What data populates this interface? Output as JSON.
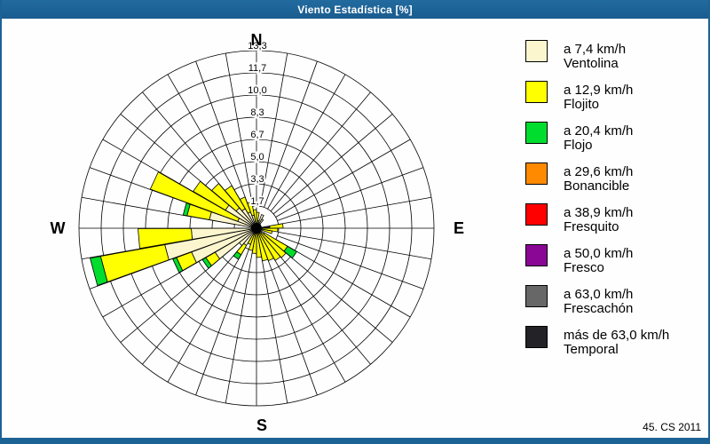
{
  "window": {
    "title": "Viento Estadística [%]",
    "footer": "45. CS 2011"
  },
  "colors": {
    "titlebar": "#1d6295",
    "frame": "#1d6295",
    "background": "#fdfefd",
    "grid": "#000000"
  },
  "chart_data": {
    "type": "windrose",
    "title": "Viento Estadística [%]",
    "units": "%",
    "legend_position": "right",
    "grid": true,
    "sector_width_deg": 10,
    "spoke_step_deg": 10,
    "radial_axis": {
      "max": 13.333,
      "ring_values": [
        1.667,
        3.333,
        5.0,
        6.667,
        8.333,
        10.0,
        11.667,
        13.333
      ],
      "ring_labels": [
        "1,7",
        "3,3",
        "5,0",
        "6,7",
        "8,3",
        "10,0",
        "11,7",
        "13,3"
      ]
    },
    "compass": {
      "n": "N",
      "e": "E",
      "s": "S",
      "w": "W"
    },
    "speed_classes": [
      {
        "key": "ventolina",
        "color": "#fcf6cf",
        "speed_label": "a 7,4 km/h",
        "name": "Ventolina"
      },
      {
        "key": "flojito",
        "color": "#ffff00",
        "speed_label": "a 12,9 km/h",
        "name": "Flojito"
      },
      {
        "key": "flojo",
        "color": "#00dd2e",
        "speed_label": "a 20,4 km/h",
        "name": "Flojo"
      },
      {
        "key": "bonancible",
        "color": "#ff8a00",
        "speed_label": "a 29,6 km/h",
        "name": "Bonancible"
      },
      {
        "key": "fresquito",
        "color": "#fe0000",
        "speed_label": "a 38,9 km/h",
        "name": "Fresquito"
      },
      {
        "key": "fresco",
        "color": "#8a0796",
        "speed_label": "a 50,0 km/h",
        "name": "Fresco"
      },
      {
        "key": "frescachon",
        "color": "#676767",
        "speed_label": "a 63,0 km/h",
        "name": "Frescachón"
      },
      {
        "key": "temporal",
        "color": "#232327",
        "speed_label": "más de 63,0 km/h",
        "name": "Temporal"
      }
    ],
    "bars": [
      {
        "dir": 5,
        "segments": [
          {
            "class": "ventolina",
            "to": 0.2
          },
          {
            "class": "flojito",
            "to": 1.2
          }
        ]
      },
      {
        "dir": 15,
        "segments": [
          {
            "class": "ventolina",
            "to": 0.6
          }
        ]
      },
      {
        "dir": 25,
        "segments": [
          {
            "class": "ventolina",
            "to": 1.1
          }
        ]
      },
      {
        "dir": 35,
        "segments": [
          {
            "class": "ventolina",
            "to": 0.8
          }
        ]
      },
      {
        "dir": 45,
        "segments": [
          {
            "class": "ventolina",
            "to": 0.4
          }
        ]
      },
      {
        "dir": 65,
        "segments": [
          {
            "class": "ventolina",
            "to": 0.3
          }
        ]
      },
      {
        "dir": 75,
        "segments": [
          {
            "class": "ventolina",
            "to": 0.3
          }
        ]
      },
      {
        "dir": 85,
        "segments": [
          {
            "class": "temporal",
            "to": 1.0
          },
          {
            "class": "flojito",
            "to": 2.0
          }
        ]
      },
      {
        "dir": 95,
        "segments": [
          {
            "class": "ventolina",
            "to": 0.3
          },
          {
            "class": "flojito",
            "to": 1.6
          }
        ]
      },
      {
        "dir": 105,
        "segments": [
          {
            "class": "ventolina",
            "to": 0.3
          },
          {
            "class": "flojito",
            "to": 1.2
          }
        ]
      },
      {
        "dir": 125,
        "segments": [
          {
            "class": "ventolina",
            "to": 0.7
          },
          {
            "class": "flojito",
            "to": 2.7
          },
          {
            "class": "flojo",
            "to": 3.5
          }
        ]
      },
      {
        "dir": 135,
        "segments": [
          {
            "class": "ventolina",
            "to": 0.5
          },
          {
            "class": "flojito",
            "to": 2.9
          }
        ]
      },
      {
        "dir": 145,
        "segments": [
          {
            "class": "ventolina",
            "to": 0.4
          },
          {
            "class": "flojito",
            "to": 2.8
          }
        ]
      },
      {
        "dir": 155,
        "segments": [
          {
            "class": "ventolina",
            "to": 0.4
          },
          {
            "class": "flojito",
            "to": 2.6
          }
        ]
      },
      {
        "dir": 165,
        "segments": [
          {
            "class": "ventolina",
            "to": 0.3
          },
          {
            "class": "flojito",
            "to": 2.5
          }
        ]
      },
      {
        "dir": 175,
        "segments": [
          {
            "class": "ventolina",
            "to": 0.3
          },
          {
            "class": "flojito",
            "to": 2.2
          }
        ]
      },
      {
        "dir": 185,
        "segments": [
          {
            "class": "ventolina",
            "to": 0.3
          },
          {
            "class": "flojito",
            "to": 1.9
          }
        ]
      },
      {
        "dir": 195,
        "segments": [
          {
            "class": "ventolina",
            "to": 0.4
          },
          {
            "class": "flojito",
            "to": 1.7
          }
        ]
      },
      {
        "dir": 205,
        "segments": [
          {
            "class": "ventolina",
            "to": 0.5
          },
          {
            "class": "flojito",
            "to": 1.3
          }
        ]
      },
      {
        "dir": 215,
        "segments": [
          {
            "class": "ventolina",
            "to": 1.5
          },
          {
            "class": "flojito",
            "to": 2.3
          },
          {
            "class": "flojo",
            "to": 2.7
          }
        ]
      },
      {
        "dir": 225,
        "segments": [
          {
            "class": "ventolina",
            "to": 1.7
          }
        ]
      },
      {
        "dir": 235,
        "segments": [
          {
            "class": "ventolina",
            "to": 3.6
          },
          {
            "class": "flojito",
            "to": 4.4
          },
          {
            "class": "flojo",
            "to": 4.7
          }
        ]
      },
      {
        "dir": 245,
        "segments": [
          {
            "class": "ventolina",
            "to": 5.2
          },
          {
            "class": "flojito",
            "to": 6.4
          },
          {
            "class": "flojo",
            "to": 6.7
          }
        ]
      },
      {
        "dir": 255,
        "segments": [
          {
            "class": "ventolina",
            "to": 7.0
          },
          {
            "class": "flojito",
            "to": 11.9
          },
          {
            "class": "flojo",
            "to": 12.7
          }
        ]
      },
      {
        "dir": 265,
        "segments": [
          {
            "class": "ventolina",
            "to": 4.9
          },
          {
            "class": "flojito",
            "to": 8.9
          }
        ]
      },
      {
        "dir": 285,
        "segments": [
          {
            "class": "ventolina",
            "to": 3.6
          },
          {
            "class": "flojito",
            "to": 5.3
          },
          {
            "class": "flojo",
            "to": 5.6
          }
        ]
      },
      {
        "dir": 295,
        "segments": [
          {
            "class": "ventolina",
            "to": 1.5
          },
          {
            "class": "flojito",
            "to": 8.5
          }
        ]
      },
      {
        "dir": 305,
        "segments": [
          {
            "class": "ventolina",
            "to": 2.7
          },
          {
            "class": "flojito",
            "to": 5.5
          }
        ]
      },
      {
        "dir": 315,
        "segments": [
          {
            "class": "ventolina",
            "to": 2.0
          },
          {
            "class": "flojito",
            "to": 4.4
          }
        ]
      },
      {
        "dir": 325,
        "segments": [
          {
            "class": "ventolina",
            "to": 1.7
          },
          {
            "class": "flojito",
            "to": 3.7
          }
        ]
      },
      {
        "dir": 335,
        "segments": [
          {
            "class": "ventolina",
            "to": 1.3
          },
          {
            "class": "flojito",
            "to": 2.5
          }
        ]
      },
      {
        "dir": 345,
        "segments": [
          {
            "class": "ventolina",
            "to": 1.0
          },
          {
            "class": "flojito",
            "to": 2.0
          }
        ]
      },
      {
        "dir": 355,
        "segments": [
          {
            "class": "ventolina",
            "to": 0.2
          },
          {
            "class": "flojito",
            "to": 1.4
          }
        ]
      }
    ]
  }
}
